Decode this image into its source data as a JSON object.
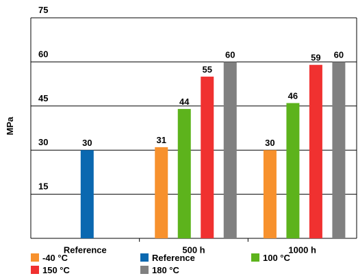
{
  "chart_data": {
    "type": "bar",
    "title": "",
    "xlabel": "",
    "ylabel": "MPa",
    "ylim": [
      0,
      75
    ],
    "yticks": [
      15,
      30,
      45,
      60,
      75
    ],
    "grid": "horizontal",
    "legend_position": "bottom",
    "categories": [
      "Reference",
      "500 h",
      "1000 h"
    ],
    "series": [
      {
        "name": "-40 °C",
        "color": "#f7912d",
        "values": [
          null,
          31,
          30
        ]
      },
      {
        "name": "Reference",
        "color": "#0a68b0",
        "values": [
          30,
          null,
          null
        ]
      },
      {
        "name": "100 °C",
        "color": "#5db31c",
        "values": [
          null,
          44,
          46
        ]
      },
      {
        "name": "150 °C",
        "color": "#f03130",
        "values": [
          null,
          55,
          59
        ]
      },
      {
        "name": "180 °C",
        "color": "#808080",
        "values": [
          null,
          60,
          60
        ]
      }
    ]
  }
}
